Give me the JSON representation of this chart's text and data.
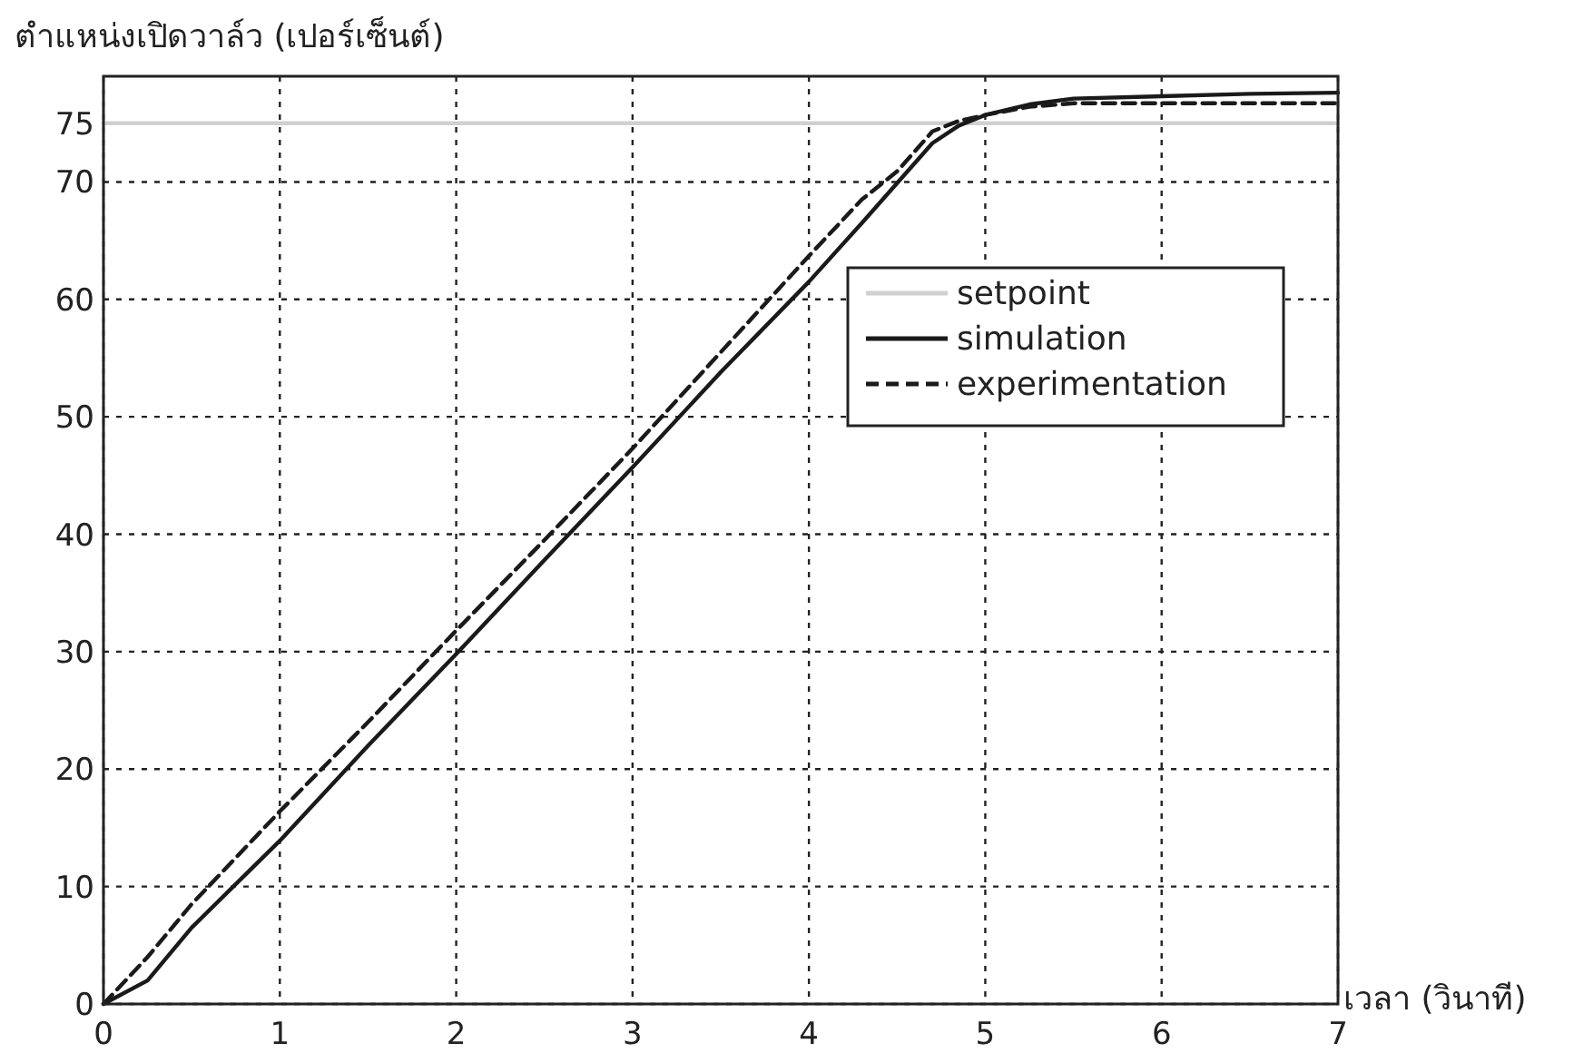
{
  "chart_data": {
    "type": "line",
    "ylabel": "ตำแหน่งเปิดวาล์ว (เปอร์เซ็นต์)",
    "xlabel": "เวลา (วินาที)",
    "xlim": [
      0,
      7
    ],
    "ylim": [
      0,
      79
    ],
    "xticks": [
      0,
      1,
      2,
      3,
      4,
      5,
      6,
      7
    ],
    "yticks": [
      0,
      10,
      20,
      30,
      40,
      50,
      60,
      70,
      75
    ],
    "grid": true,
    "legend": "right",
    "series": [
      {
        "name": "setpoint",
        "color": "#d0d0d0",
        "line_style": "solid",
        "x": [
          0,
          7
        ],
        "values": [
          75,
          75
        ]
      },
      {
        "name": "simulation",
        "color": "#1a1a1a",
        "line_style": "solid",
        "x": [
          0,
          0.25,
          0.5,
          1,
          1.5,
          2,
          2.5,
          3,
          3.5,
          4,
          4.3,
          4.5,
          4.7,
          4.85,
          5,
          5.25,
          5.5,
          6,
          6.5,
          7
        ],
        "values": [
          0,
          2,
          6.5,
          13.9,
          22,
          29.8,
          37.8,
          45.7,
          53.8,
          61.5,
          66.5,
          69.9,
          73.3,
          74.8,
          75.7,
          76.6,
          77.1,
          77.3,
          77.5,
          77.6
        ]
      },
      {
        "name": "experimentation",
        "color": "#1a1a1a",
        "line_style": "dashed",
        "x": [
          0,
          0.25,
          0.5,
          1,
          1.5,
          2,
          2.5,
          3,
          3.5,
          4,
          4.3,
          4.5,
          4.7,
          4.85,
          5,
          5.25,
          5.5,
          6,
          6.5,
          7
        ],
        "values": [
          0,
          4,
          8.5,
          16.4,
          24,
          31.8,
          39.5,
          47.3,
          55.5,
          63.7,
          68.5,
          70.9,
          74.3,
          75.2,
          75.7,
          76.4,
          76.7,
          76.7,
          76.7,
          76.7
        ]
      }
    ]
  }
}
